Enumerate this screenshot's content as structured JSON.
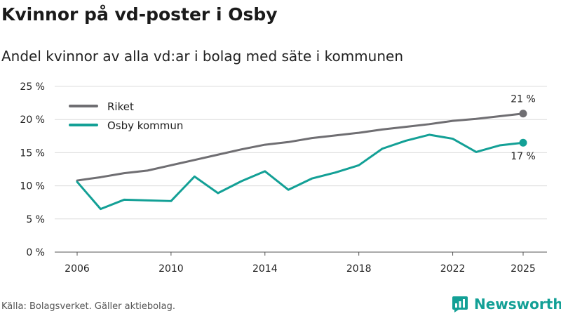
{
  "title": "Kvinnor på vd-poster i Osby",
  "subtitle": "Andel kvinnor av alla vd:ar i bolag med säte i kommunen",
  "source": "Källa: Bolagsverket. Gäller aktiebolag.",
  "brand": {
    "name": "Newsworthy",
    "icon": "newsworthy-logo-icon",
    "color": "#13a096"
  },
  "chart_data": {
    "type": "line",
    "title": "Kvinnor på vd-poster i Osby",
    "xlabel": "",
    "ylabel": "",
    "x": [
      2006,
      2007,
      2008,
      2009,
      2010,
      2011,
      2012,
      2013,
      2014,
      2015,
      2016,
      2017,
      2018,
      2019,
      2020,
      2021,
      2022,
      2023,
      2024,
      2025
    ],
    "xticks": [
      2006,
      2010,
      2014,
      2018,
      2022,
      2025
    ],
    "ylim": [
      0,
      25
    ],
    "yticks": [
      0,
      5,
      10,
      15,
      20,
      25
    ],
    "ytick_labels": [
      "0 %",
      "5 %",
      "10 %",
      "15 %",
      "20 %",
      "25 %"
    ],
    "grid": true,
    "legend_position": "top-left",
    "series": [
      {
        "name": "Riket",
        "color": "#6f6e72",
        "values": [
          10.8,
          11.3,
          11.9,
          12.3,
          13.1,
          13.9,
          14.7,
          15.5,
          16.2,
          16.6,
          17.2,
          17.6,
          18.0,
          18.5,
          18.9,
          19.3,
          19.8,
          20.1,
          20.5,
          20.9
        ],
        "end_label": "21 %"
      },
      {
        "name": "Osby kommun",
        "color": "#13a096",
        "values": [
          10.6,
          6.5,
          7.9,
          7.8,
          7.7,
          11.4,
          8.9,
          10.7,
          12.2,
          9.4,
          11.1,
          12.0,
          13.1,
          15.6,
          16.8,
          17.7,
          17.1,
          15.1,
          16.1,
          16.5
        ],
        "end_label": "17 %"
      }
    ]
  }
}
